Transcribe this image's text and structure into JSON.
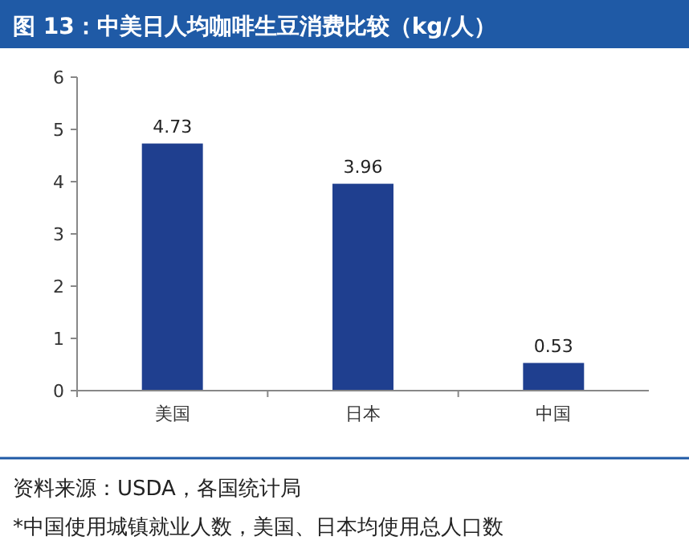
{
  "chart_data": {
    "type": "bar",
    "title": "图 13：中美日人均咖啡生豆消费比较（kg/人）",
    "categories": [
      "美国",
      "日本",
      "中国"
    ],
    "values": [
      4.73,
      3.96,
      0.53
    ],
    "color": "#1f3f8f",
    "ylim": [
      0,
      6
    ],
    "yticks": [
      0,
      1,
      2,
      3,
      4,
      5,
      6
    ],
    "data_labels": true,
    "grid": false,
    "annotations": [
      "资料来源：USDA，各国统计局",
      "*中国使用城镇就业人数，美国、日本均使用总人口数"
    ]
  }
}
